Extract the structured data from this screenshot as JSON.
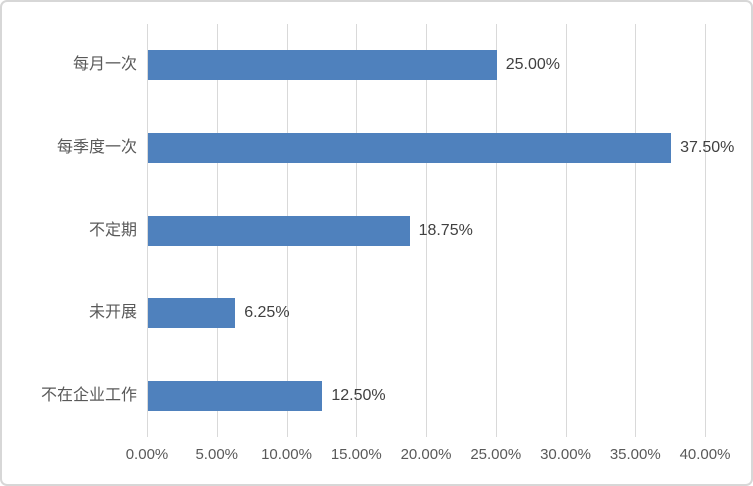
{
  "window": {
    "background_color": "#FFFFFF",
    "border_color": "#D7D7D7"
  },
  "chart_data": {
    "type": "bar",
    "orientation": "horizontal",
    "title": "",
    "xlabel": "",
    "ylabel": "",
    "categories": [
      "每月一次",
      "每季度一次",
      "不定期",
      "未开展",
      "不在企业工作"
    ],
    "values": [
      25.0,
      37.5,
      18.75,
      6.25,
      12.5
    ],
    "data_labels": [
      "25.00%",
      "37.50%",
      "18.75%",
      "6.25%",
      "12.50%"
    ],
    "x_ticks": [
      "0.00%",
      "5.00%",
      "10.00%",
      "15.00%",
      "20.00%",
      "25.00%",
      "30.00%",
      "35.00%",
      "40.00%"
    ],
    "x_tick_values": [
      0,
      5,
      10,
      15,
      20,
      25,
      30,
      35,
      40
    ],
    "xlim": [
      0,
      40
    ],
    "grid": true,
    "legend": "none",
    "bar_color": "#4F81BD",
    "gridline_color": "#D9D9D9",
    "category_label_color": "#595959",
    "data_label_color": "#404040",
    "tick_label_color": "#595959"
  }
}
